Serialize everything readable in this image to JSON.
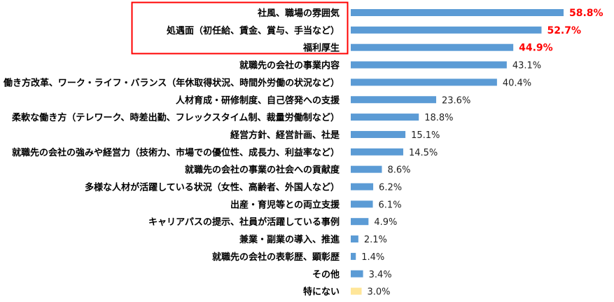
{
  "chart_data": {
    "type": "bar",
    "orientation": "horizontal",
    "title": "",
    "xlabel": "",
    "ylabel": "",
    "unit": "%",
    "xlim": [
      0,
      60
    ],
    "grid": false,
    "categories": [
      "社風、職場の雰囲気",
      "処遇面（初任給、賃金、賞与、手当など）",
      "福利厚生",
      "就職先の会社の事業内容",
      "働き方改革、ワーク・ライフ・バランス（年休取得状況、時間外労働の状況など）",
      "人材育成・研修制度、自己啓発への支援",
      "柔軟な働き方（テレワーク、時差出勤、フレックスタイム制、裁量労働制など）",
      "経営方針、経営計画、社是",
      "就職先の会社の強みや経営力（技術力、市場での優位性、成長力、利益率など）",
      "就職先の会社の事業の社会への貢献度",
      "多様な人材が活躍している状況（女性、高齢者、外国人など）",
      "出産・育児等との両立支援",
      "キャリアパスの提示、社員が活躍している事例",
      "兼業・副業の導入、推進",
      "就職先の会社の表彰歴、顕彰歴",
      "その他",
      "特にない"
    ],
    "values": [
      58.8,
      52.7,
      44.9,
      43.1,
      40.4,
      23.6,
      18.8,
      15.1,
      14.5,
      8.6,
      6.2,
      6.1,
      4.9,
      2.1,
      1.4,
      3.4,
      3.0
    ],
    "value_labels": [
      "58.8%",
      "52.7%",
      "44.9%",
      "43.1%",
      "40.4%",
      "23.6%",
      "18.8%",
      "15.1%",
      "14.5%",
      "8.6%",
      "6.2%",
      "6.1%",
      "4.9%",
      "2.1%",
      "1.4%",
      "3.4%",
      "3.0%"
    ],
    "highlighted_top": 3,
    "colors": {
      "bar": "#5b9bd5",
      "bar_none": "#ffe699",
      "highlight_box": "#ff0000",
      "highlight_value": "#ff0000"
    }
  }
}
